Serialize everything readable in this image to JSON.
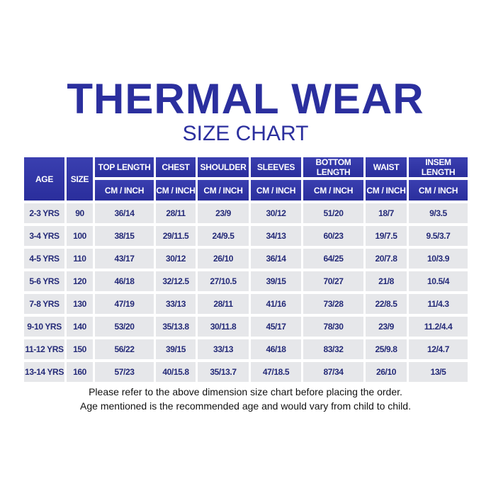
{
  "title": "THERMAL WEAR",
  "subtitle": "SIZE CHART",
  "colors": {
    "header": "#2b2f9e",
    "cell": "#e6e7ea",
    "text": "#242a78"
  },
  "table": {
    "headers": [
      "AGE",
      "SIZE",
      "TOP LENGTH",
      "CHEST",
      "SHOULDER",
      "SLEEVES",
      "BOTTOM LENGTH",
      "WAIST",
      "INSEM LENGTH"
    ],
    "unit": "CM / INCH",
    "rows": [
      [
        "2-3 YRS",
        "90",
        "36/14",
        "28/11",
        "23/9",
        "30/12",
        "51/20",
        "18/7",
        "9/3.5"
      ],
      [
        "3-4 YRS",
        "100",
        "38/15",
        "29/11.5",
        "24/9.5",
        "34/13",
        "60/23",
        "19/7.5",
        "9.5/3.7"
      ],
      [
        "4-5 YRS",
        "110",
        "43/17",
        "30/12",
        "26/10",
        "36/14",
        "64/25",
        "20/7.8",
        "10/3.9"
      ],
      [
        "5-6 YRS",
        "120",
        "46/18",
        "32/12.5",
        "27/10.5",
        "39/15",
        "70/27",
        "21/8",
        "10.5/4"
      ],
      [
        "7-8 YRS",
        "130",
        "47/19",
        "33/13",
        "28/11",
        "41/16",
        "73/28",
        "22/8.5",
        "11/4.3"
      ],
      [
        "9-10 YRS",
        "140",
        "53/20",
        "35/13.8",
        "30/11.8",
        "45/17",
        "78/30",
        "23/9",
        "11.2/4.4"
      ],
      [
        "11-12 YRS",
        "150",
        "56/22",
        "39/15",
        "33/13",
        "46/18",
        "83/32",
        "25/9.8",
        "12/4.7"
      ],
      [
        "13-14 YRS",
        "160",
        "57/23",
        "40/15.8",
        "35/13.7",
        "47/18.5",
        "87/34",
        "26/10",
        "13/5"
      ]
    ]
  },
  "notes": [
    "Please refer to the above dimension size chart before placing the order.",
    "Age mentioned is the recommended age and would vary from child to child."
  ]
}
